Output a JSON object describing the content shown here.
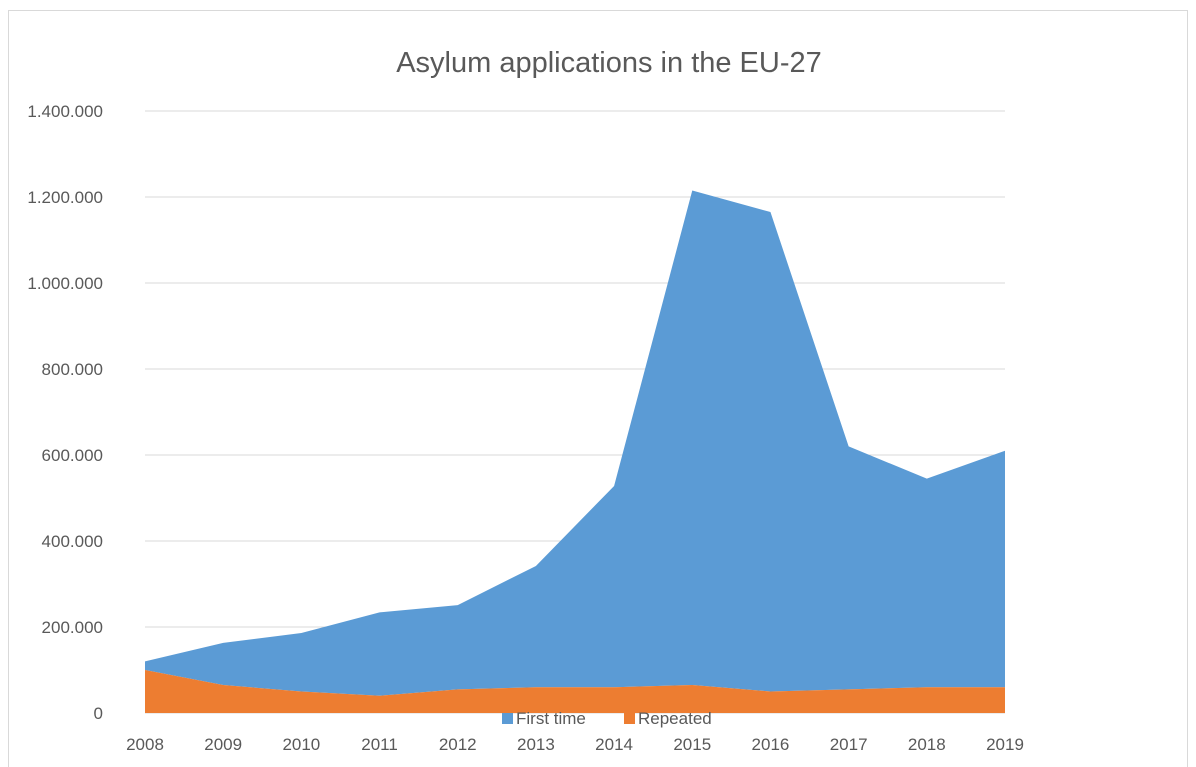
{
  "chart_data": {
    "type": "area",
    "stacked": true,
    "title": "Asylum applications in the EU-27",
    "xlabel": "",
    "ylabel": "",
    "categories": [
      "2008",
      "2009",
      "2010",
      "2011",
      "2012",
      "2013",
      "2014",
      "2015",
      "2016",
      "2017",
      "2018",
      "2019"
    ],
    "series": [
      {
        "name": "First time",
        "color": "#5b9bd5",
        "values": [
          20000,
          98000,
          136000,
          194000,
          196000,
          282000,
          468000,
          1150000,
          1115000,
          565000,
          485000,
          550000
        ]
      },
      {
        "name": "Repeated",
        "color": "#ed7d31",
        "values": [
          100000,
          65000,
          50000,
          40000,
          55000,
          60000,
          60000,
          65000,
          50000,
          55000,
          60000,
          60000
        ]
      }
    ],
    "ylim": [
      0,
      1400000
    ],
    "yticks": [
      "0",
      "200.000",
      "400.000",
      "600.000",
      "800.000",
      "1.000.000",
      "1.200.000",
      "1.400.000"
    ],
    "grid": true,
    "legend_position": "bottom"
  }
}
